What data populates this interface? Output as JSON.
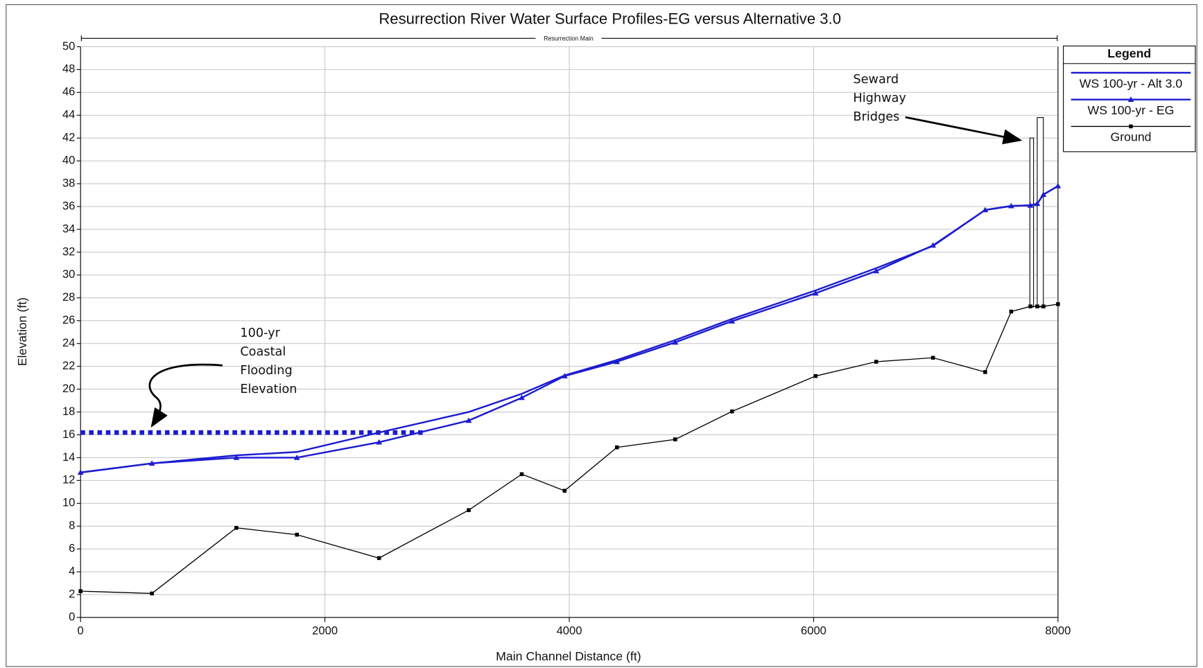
{
  "chart_data": {
    "type": "line",
    "title": "Resurrection River Water Surface Profiles-EG versus Alternative 3.0",
    "xlabel": "Main Channel Distance (ft)",
    "ylabel": "Elevation (ft)",
    "reach_label": "Resurrection Main",
    "legend_title": "Legend",
    "legend": "right",
    "grid": true,
    "xlim": [
      0,
      8000
    ],
    "ylim": [
      0,
      50
    ],
    "xticks": [
      0,
      2000,
      4000,
      6000,
      8000
    ],
    "yticks": [
      0,
      2,
      4,
      6,
      8,
      10,
      12,
      14,
      16,
      18,
      20,
      22,
      24,
      26,
      28,
      30,
      32,
      34,
      36,
      38,
      40,
      42,
      44,
      46,
      48,
      50
    ],
    "x": [
      0,
      584,
      1275,
      1771,
      2443,
      3177,
      3611,
      3962,
      4390,
      4867,
      5332,
      6016,
      6512,
      6977,
      7404,
      7617,
      7774,
      7830,
      7881,
      8000
    ],
    "series": [
      {
        "name": "WS  100-yr - Alt 3.0",
        "color": "#1c1cd0",
        "marker": "none",
        "values": [
          12.7,
          13.5,
          14.2,
          14.5,
          16.2,
          18.0,
          19.6,
          21.2,
          22.55,
          24.3,
          26.15,
          28.65,
          30.6,
          32.55,
          35.7,
          36.05,
          36.1,
          36.25,
          37.05,
          37.8
        ]
      },
      {
        "name": "WS  100-yr - EG",
        "color": "#1c1cd0",
        "marker": "triangle",
        "values": [
          12.7,
          13.5,
          14.0,
          14.0,
          15.35,
          17.25,
          19.25,
          21.15,
          22.4,
          24.1,
          25.95,
          28.4,
          30.35,
          32.6,
          35.7,
          36.05,
          36.1,
          36.25,
          37.05,
          37.8
        ]
      },
      {
        "name": "Ground",
        "color": "#000000",
        "marker": "square",
        "values": [
          2.3,
          2.1,
          7.85,
          7.25,
          5.2,
          9.4,
          12.55,
          11.1,
          14.9,
          15.6,
          18.05,
          21.15,
          22.4,
          22.75,
          21.5,
          26.8,
          27.25,
          27.25,
          27.25,
          27.45
        ]
      }
    ],
    "coastal_flood_level": {
      "value": 16.2,
      "x": [
        0,
        2800
      ],
      "color": "#1c1cd0"
    },
    "bridges": [
      {
        "x": [
          7770,
          7800
        ],
        "bottom": 27.2,
        "top": 42.0
      },
      {
        "x": [
          7830,
          7880
        ],
        "bottom": 27.2,
        "top": 43.8
      }
    ],
    "annotations": [
      {
        "lines": [
          "100-yr",
          "Coastal",
          "Flooding",
          "Elevation"
        ]
      },
      {
        "lines": [
          "Seward",
          "Highway",
          "Bridges"
        ]
      }
    ]
  }
}
